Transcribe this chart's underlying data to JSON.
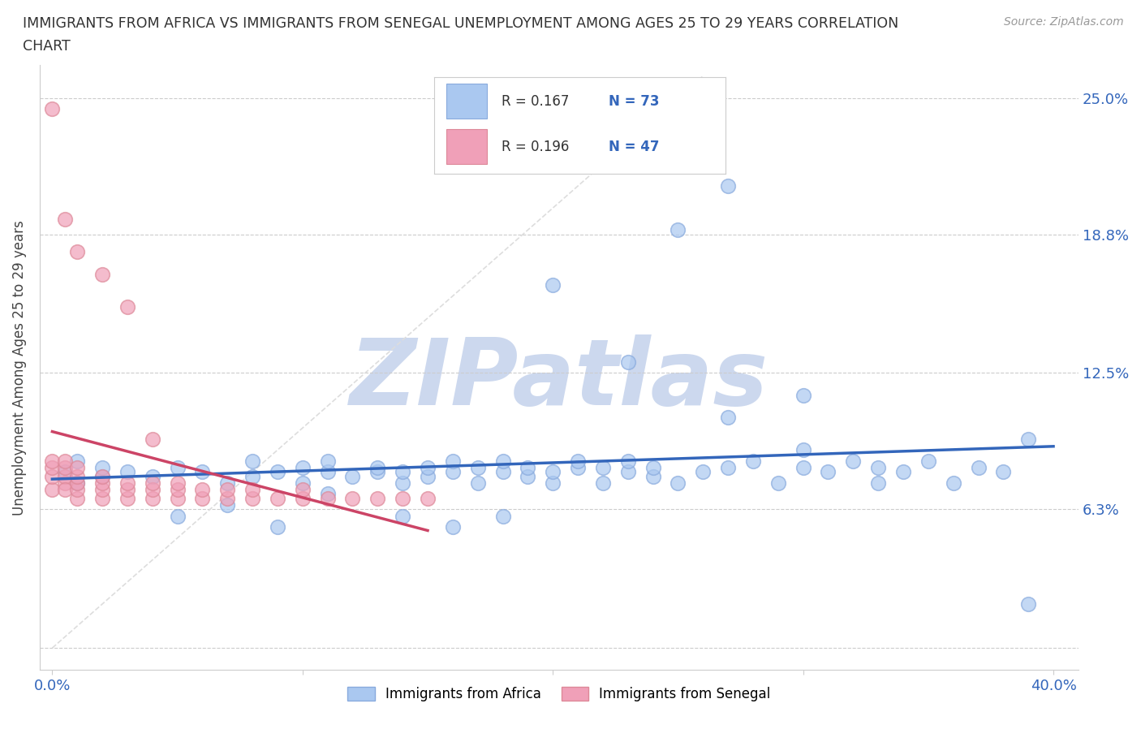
{
  "title_line1": "IMMIGRANTS FROM AFRICA VS IMMIGRANTS FROM SENEGAL UNEMPLOYMENT AMONG AGES 25 TO 29 YEARS CORRELATION",
  "title_line2": "CHART",
  "source": "Source: ZipAtlas.com",
  "ylabel": "Unemployment Among Ages 25 to 29 years",
  "xlim": [
    -0.005,
    0.41
  ],
  "ylim": [
    -0.01,
    0.265
  ],
  "ytick_positions": [
    0.0,
    0.063,
    0.125,
    0.188,
    0.25
  ],
  "yticklabels_right": [
    "",
    "6.3%",
    "12.5%",
    "18.8%",
    "25.0%"
  ],
  "xtick_positions": [
    0.0,
    0.1,
    0.2,
    0.3,
    0.4
  ],
  "xticklabels": [
    "0.0%",
    "",
    "",
    "",
    "40.0%"
  ],
  "africa_color": "#aac8f0",
  "africa_edge": "#88aadd",
  "senegal_color": "#f0a0b8",
  "senegal_edge": "#dd8898",
  "africa_line_color": "#3366bb",
  "senegal_line_color": "#cc4466",
  "africa_R": 0.167,
  "africa_N": 73,
  "senegal_R": 0.196,
  "senegal_N": 47,
  "watermark": "ZIPatlas",
  "watermark_color": "#ccd8ee",
  "background_color": "#ffffff",
  "grid_color": "#cccccc",
  "tick_color": "#3366bb",
  "title_color": "#333333",
  "ylabel_color": "#444444",
  "africa_x": [
    0.005,
    0.01,
    0.01,
    0.02,
    0.02,
    0.03,
    0.04,
    0.05,
    0.06,
    0.07,
    0.08,
    0.08,
    0.09,
    0.1,
    0.1,
    0.11,
    0.11,
    0.12,
    0.13,
    0.13,
    0.14,
    0.14,
    0.15,
    0.15,
    0.16,
    0.16,
    0.17,
    0.17,
    0.18,
    0.18,
    0.19,
    0.19,
    0.2,
    0.2,
    0.21,
    0.21,
    0.22,
    0.22,
    0.23,
    0.23,
    0.24,
    0.24,
    0.25,
    0.26,
    0.27,
    0.28,
    0.29,
    0.3,
    0.3,
    0.31,
    0.32,
    0.33,
    0.33,
    0.34,
    0.35,
    0.36,
    0.37,
    0.38,
    0.05,
    0.07,
    0.09,
    0.11,
    0.14,
    0.16,
    0.18,
    0.23,
    0.27,
    0.3,
    0.39,
    0.27,
    0.39,
    0.2,
    0.25
  ],
  "africa_y": [
    0.08,
    0.075,
    0.085,
    0.078,
    0.082,
    0.08,
    0.078,
    0.082,
    0.08,
    0.075,
    0.078,
    0.085,
    0.08,
    0.075,
    0.082,
    0.08,
    0.085,
    0.078,
    0.08,
    0.082,
    0.075,
    0.08,
    0.078,
    0.082,
    0.08,
    0.085,
    0.075,
    0.082,
    0.08,
    0.085,
    0.078,
    0.082,
    0.075,
    0.08,
    0.082,
    0.085,
    0.075,
    0.082,
    0.08,
    0.085,
    0.078,
    0.082,
    0.075,
    0.08,
    0.082,
    0.085,
    0.075,
    0.082,
    0.09,
    0.08,
    0.085,
    0.075,
    0.082,
    0.08,
    0.085,
    0.075,
    0.082,
    0.08,
    0.06,
    0.065,
    0.055,
    0.07,
    0.06,
    0.055,
    0.06,
    0.13,
    0.105,
    0.115,
    0.095,
    0.21,
    0.02,
    0.165,
    0.19
  ],
  "senegal_x": [
    0.0,
    0.0,
    0.0,
    0.0,
    0.005,
    0.005,
    0.005,
    0.005,
    0.005,
    0.01,
    0.01,
    0.01,
    0.01,
    0.01,
    0.02,
    0.02,
    0.02,
    0.02,
    0.03,
    0.03,
    0.03,
    0.04,
    0.04,
    0.04,
    0.05,
    0.05,
    0.05,
    0.06,
    0.06,
    0.07,
    0.07,
    0.08,
    0.08,
    0.09,
    0.1,
    0.1,
    0.11,
    0.12,
    0.13,
    0.14,
    0.15,
    0.0,
    0.005,
    0.01,
    0.02,
    0.03,
    0.04
  ],
  "senegal_y": [
    0.072,
    0.078,
    0.082,
    0.085,
    0.075,
    0.078,
    0.082,
    0.072,
    0.085,
    0.068,
    0.072,
    0.075,
    0.078,
    0.082,
    0.068,
    0.072,
    0.075,
    0.078,
    0.068,
    0.072,
    0.075,
    0.068,
    0.072,
    0.075,
    0.068,
    0.072,
    0.075,
    0.068,
    0.072,
    0.068,
    0.072,
    0.068,
    0.072,
    0.068,
    0.068,
    0.072,
    0.068,
    0.068,
    0.068,
    0.068,
    0.068,
    0.245,
    0.195,
    0.18,
    0.17,
    0.155,
    0.095
  ]
}
